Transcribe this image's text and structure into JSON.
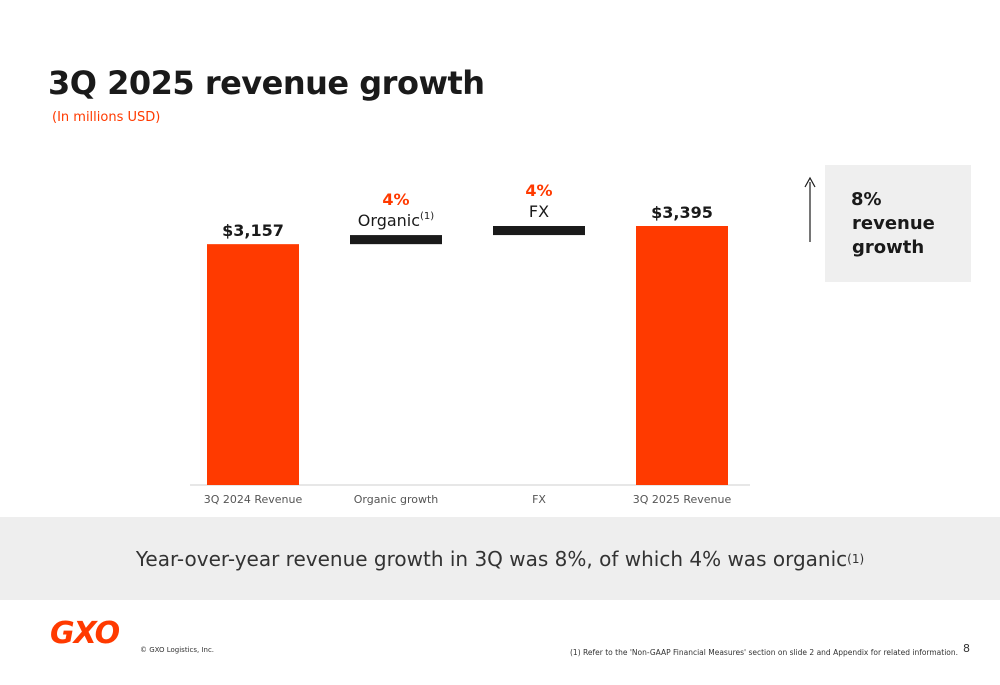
{
  "header": {
    "title": "3Q 2025 revenue growth",
    "subtitle": "(In millions USD)"
  },
  "chart_data": {
    "type": "waterfall",
    "categories": [
      "3Q 2024 Revenue",
      "Organic growth",
      "FX",
      "3Q 2025 Revenue"
    ],
    "values": [
      3157,
      119,
      119,
      3395
    ],
    "value_labels": [
      "$3,157",
      null,
      null,
      "$3,395"
    ],
    "measure": [
      "absolute",
      "relative",
      "relative",
      "total"
    ],
    "colors": [
      "#ff3a00",
      "#1a1a1a",
      "#1a1a1a",
      "#ff3a00"
    ],
    "step_labels": [
      null,
      {
        "pct": "4%",
        "name": "Organic",
        "note": "(1)"
      },
      {
        "pct": "4%",
        "name": "FX"
      },
      null
    ]
  },
  "callout": {
    "value": "8%",
    "text": "revenue growth"
  },
  "banner": {
    "text": "Year-over-year revenue growth in 3Q was 8%, of which 4% was organic",
    "note": "(1)"
  },
  "footer": {
    "logo": "GXO",
    "copyright": "© GXO Logistics, Inc.",
    "footnote": "(1) Refer to the 'Non-GAAP Financial Measures' section on slide 2 and Appendix for related information.",
    "page": "8"
  }
}
